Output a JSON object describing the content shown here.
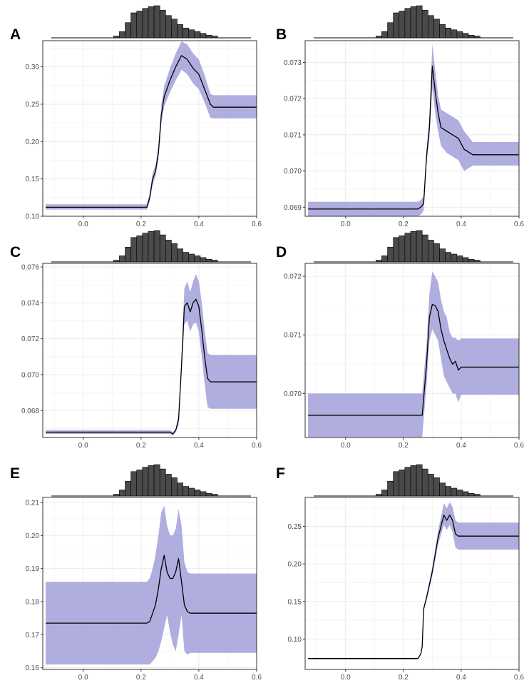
{
  "chart_data": [
    {
      "panel": "A",
      "type": "line",
      "xlim": [
        -0.14,
        0.6
      ],
      "ylim": [
        0.1,
        0.335
      ],
      "x_ticks": [
        "0.0",
        "0.2",
        "0.4",
        "0.6"
      ],
      "y_ticks": [
        "0.10",
        "0.15",
        "0.20",
        "0.25",
        "0.30"
      ],
      "x": [
        -0.13,
        0.22,
        0.23,
        0.24,
        0.25,
        0.26,
        0.27,
        0.28,
        0.3,
        0.32,
        0.34,
        0.36,
        0.38,
        0.4,
        0.42,
        0.44,
        0.45,
        0.6
      ],
      "y": [
        0.112,
        0.112,
        0.125,
        0.15,
        0.16,
        0.185,
        0.235,
        0.26,
        0.282,
        0.3,
        0.315,
        0.31,
        0.298,
        0.29,
        0.27,
        0.25,
        0.246,
        0.246
      ],
      "lower": [
        0.109,
        0.109,
        0.119,
        0.142,
        0.153,
        0.176,
        0.223,
        0.247,
        0.266,
        0.282,
        0.296,
        0.29,
        0.278,
        0.27,
        0.252,
        0.232,
        0.231,
        0.231
      ],
      "upper": [
        0.116,
        0.116,
        0.131,
        0.158,
        0.168,
        0.195,
        0.248,
        0.274,
        0.298,
        0.318,
        0.334,
        0.33,
        0.318,
        0.31,
        0.289,
        0.264,
        0.262,
        0.262
      ]
    },
    {
      "panel": "B",
      "type": "line",
      "xlim": [
        -0.14,
        0.6
      ],
      "ylim": [
        0.06875,
        0.0736
      ],
      "x_ticks": [
        "0.0",
        "0.2",
        "0.4",
        "0.6"
      ],
      "y_ticks": [
        "0.069",
        "0.070",
        "0.071",
        "0.072",
        "0.073"
      ],
      "x": [
        -0.13,
        0.25,
        0.26,
        0.27,
        0.28,
        0.29,
        0.3,
        0.31,
        0.32,
        0.33,
        0.35,
        0.37,
        0.39,
        0.41,
        0.44,
        0.6
      ],
      "y": [
        0.06895,
        0.06895,
        0.069,
        0.0691,
        0.0704,
        0.0712,
        0.0729,
        0.0722,
        0.0716,
        0.0712,
        0.0711,
        0.071,
        0.0709,
        0.0706,
        0.07045,
        0.07045
      ],
      "lower": [
        0.06875,
        0.06875,
        0.0688,
        0.0689,
        0.0702,
        0.0709,
        0.0723,
        0.0716,
        0.0711,
        0.0707,
        0.0705,
        0.0704,
        0.0703,
        0.07,
        0.07015,
        0.07015
      ],
      "upper": [
        0.06915,
        0.06915,
        0.0692,
        0.0693,
        0.0706,
        0.0715,
        0.0735,
        0.0728,
        0.0721,
        0.0717,
        0.0716,
        0.0715,
        0.0714,
        0.0711,
        0.0708,
        0.0708
      ]
    },
    {
      "panel": "C",
      "type": "line",
      "xlim": [
        -0.14,
        0.6
      ],
      "ylim": [
        0.0665,
        0.0762
      ],
      "x_ticks": [
        "0.0",
        "0.2",
        "0.4",
        "0.6"
      ],
      "y_ticks": [
        "0.068",
        "0.070",
        "0.072",
        "0.074",
        "0.076"
      ],
      "x": [
        -0.13,
        0.3,
        0.31,
        0.32,
        0.33,
        0.34,
        0.35,
        0.36,
        0.37,
        0.38,
        0.39,
        0.4,
        0.41,
        0.42,
        0.43,
        0.44,
        0.6
      ],
      "y": [
        0.0668,
        0.0668,
        0.0667,
        0.0669,
        0.0675,
        0.0705,
        0.0738,
        0.074,
        0.0735,
        0.074,
        0.0742,
        0.0738,
        0.0725,
        0.071,
        0.0698,
        0.0696,
        0.0696
      ],
      "lower": [
        0.0667,
        0.0667,
        0.0666,
        0.0668,
        0.0672,
        0.07,
        0.0728,
        0.073,
        0.0724,
        0.0728,
        0.0729,
        0.0724,
        0.071,
        0.0695,
        0.0682,
        0.0681,
        0.0681
      ],
      "upper": [
        0.0669,
        0.0669,
        0.0668,
        0.067,
        0.0678,
        0.071,
        0.0748,
        0.0752,
        0.0746,
        0.0752,
        0.0756,
        0.0752,
        0.074,
        0.0725,
        0.0712,
        0.0711,
        0.0711
      ]
    },
    {
      "panel": "D",
      "type": "line",
      "xlim": [
        -0.14,
        0.6
      ],
      "ylim": [
        0.06925,
        0.07222
      ],
      "x_ticks": [
        "0.0",
        "0.2",
        "0.4",
        "0.6"
      ],
      "y_ticks": [
        "0.070",
        "0.071",
        "0.072"
      ],
      "x": [
        -0.13,
        0.265,
        0.28,
        0.29,
        0.3,
        0.31,
        0.32,
        0.33,
        0.34,
        0.35,
        0.36,
        0.37,
        0.38,
        0.39,
        0.4,
        0.42,
        0.6
      ],
      "y": [
        0.06963,
        0.06963,
        0.0705,
        0.0713,
        0.07152,
        0.0715,
        0.0714,
        0.0711,
        0.0709,
        0.07075,
        0.0706,
        0.0705,
        0.07055,
        0.0704,
        0.07045,
        0.07045,
        0.07045
      ],
      "lower": [
        0.06926,
        0.06926,
        0.07015,
        0.0709,
        0.0711,
        0.071,
        0.0709,
        0.0706,
        0.0703,
        0.0702,
        0.0701,
        0.07,
        0.07,
        0.06985,
        0.06998,
        0.06998,
        0.06998
      ],
      "upper": [
        0.07,
        0.07,
        0.07085,
        0.0717,
        0.07208,
        0.072,
        0.0719,
        0.0716,
        0.0714,
        0.0713,
        0.07105,
        0.07095,
        0.07095,
        0.0709,
        0.07094,
        0.07094,
        0.07094
      ]
    },
    {
      "panel": "E",
      "type": "line",
      "xlim": [
        -0.14,
        0.6
      ],
      "ylim": [
        0.1595,
        0.2115
      ],
      "x_ticks": [
        "0.0",
        "0.2",
        "0.4",
        "0.6"
      ],
      "y_ticks": [
        "0.16",
        "0.17",
        "0.18",
        "0.19",
        "0.20",
        "0.21"
      ],
      "x": [
        -0.13,
        0.22,
        0.23,
        0.24,
        0.25,
        0.26,
        0.27,
        0.28,
        0.29,
        0.3,
        0.31,
        0.32,
        0.33,
        0.34,
        0.35,
        0.36,
        0.37,
        0.6
      ],
      "y": [
        0.1735,
        0.1735,
        0.174,
        0.1765,
        0.179,
        0.184,
        0.19,
        0.194,
        0.189,
        0.187,
        0.187,
        0.189,
        0.193,
        0.186,
        0.179,
        0.177,
        0.1765,
        0.1765
      ],
      "lower": [
        0.161,
        0.161,
        0.161,
        0.162,
        0.163,
        0.165,
        0.168,
        0.172,
        0.176,
        0.171,
        0.167,
        0.165,
        0.17,
        0.176,
        0.165,
        0.164,
        0.1645,
        0.1645
      ],
      "upper": [
        0.186,
        0.186,
        0.187,
        0.19,
        0.194,
        0.2,
        0.207,
        0.209,
        0.203,
        0.2,
        0.2,
        0.202,
        0.208,
        0.203,
        0.192,
        0.189,
        0.1885,
        0.1885
      ]
    },
    {
      "panel": "F",
      "type": "line",
      "xlim": [
        -0.14,
        0.6
      ],
      "ylim": [
        0.0595,
        0.2885
      ],
      "x_ticks": [
        "0.0",
        "0.2",
        "0.4",
        "0.6"
      ],
      "y_ticks": [
        "0.10",
        "0.15",
        "0.20",
        "0.25"
      ],
      "x": [
        -0.13,
        0.25,
        0.26,
        0.265,
        0.27,
        0.28,
        0.3,
        0.32,
        0.34,
        0.35,
        0.36,
        0.37,
        0.38,
        0.39,
        0.6
      ],
      "y": [
        0.074,
        0.074,
        0.08,
        0.09,
        0.14,
        0.155,
        0.19,
        0.235,
        0.265,
        0.258,
        0.265,
        0.258,
        0.24,
        0.237,
        0.237
      ],
      "lower": [
        0.073,
        0.073,
        0.079,
        0.088,
        0.137,
        0.151,
        0.184,
        0.226,
        0.252,
        0.245,
        0.252,
        0.242,
        0.222,
        0.219,
        0.219
      ],
      "upper": [
        0.075,
        0.075,
        0.081,
        0.092,
        0.143,
        0.159,
        0.196,
        0.244,
        0.281,
        0.274,
        0.282,
        0.276,
        0.258,
        0.255,
        0.255
      ]
    }
  ],
  "histogram": {
    "bin_start": 0.105,
    "bin_width": 0.02,
    "counts": [
      2,
      7,
      17,
      28,
      30,
      33,
      35,
      36,
      31,
      25,
      21,
      15,
      11,
      9,
      7,
      5,
      3,
      2
    ]
  },
  "colors": {
    "ribbon": "#9a96d6",
    "line": "#000000",
    "hist_fill": "#4a4a4a",
    "grid": "#ebebeb",
    "frame": "#333333"
  }
}
